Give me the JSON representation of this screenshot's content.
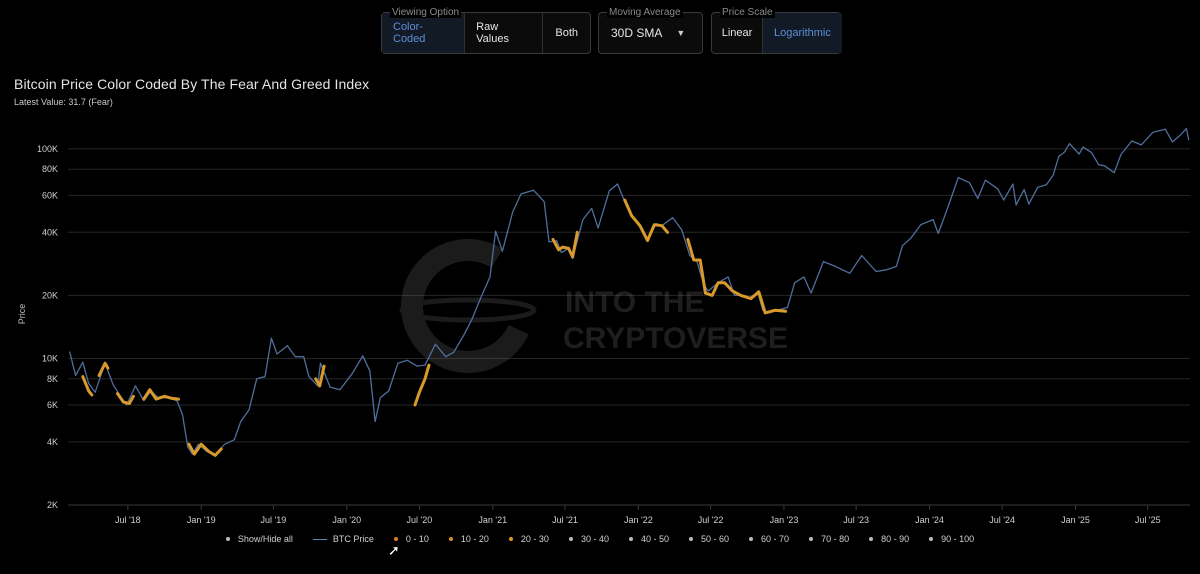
{
  "controls": {
    "viewing_option": {
      "label": "Viewing Option",
      "options": [
        "Color-Coded",
        "Raw Values",
        "Both"
      ],
      "selected": "Color-Coded"
    },
    "moving_average": {
      "label": "Moving Average",
      "value": "30D SMA"
    },
    "price_scale": {
      "label": "Price Scale",
      "options": [
        "Linear",
        "Logarithmic"
      ],
      "selected": "Logarithmic"
    }
  },
  "chart_data": {
    "type": "line",
    "title": "Bitcoin Price Color Coded By The Fear And Greed Index",
    "subtitle": "Latest Value: 31.7 (Fear)",
    "ylabel": "Price",
    "xlabel": "",
    "yscale": "log",
    "ylim": [
      2000,
      130000
    ],
    "xlim": [
      "2018-02-01",
      "2025-10-15"
    ],
    "y_ticks": [
      {
        "value": 2000,
        "label": "2K"
      },
      {
        "value": 4000,
        "label": "4K"
      },
      {
        "value": 6000,
        "label": "6K"
      },
      {
        "value": 8000,
        "label": "8K"
      },
      {
        "value": 10000,
        "label": "10K"
      },
      {
        "value": 20000,
        "label": "20K"
      },
      {
        "value": 40000,
        "label": "40K"
      },
      {
        "value": 60000,
        "label": "60K"
      },
      {
        "value": 80000,
        "label": "80K"
      },
      {
        "value": 100000,
        "label": "100K"
      }
    ],
    "x_ticks": [
      {
        "date": "2018-07-01",
        "label": "Jul '18"
      },
      {
        "date": "2019-01-01",
        "label": "Jan '19"
      },
      {
        "date": "2019-07-01",
        "label": "Jul '19"
      },
      {
        "date": "2020-01-01",
        "label": "Jan '20"
      },
      {
        "date": "2020-07-01",
        "label": "Jul '20"
      },
      {
        "date": "2021-01-01",
        "label": "Jan '21"
      },
      {
        "date": "2021-07-01",
        "label": "Jul '21"
      },
      {
        "date": "2022-01-01",
        "label": "Jan '22"
      },
      {
        "date": "2022-07-01",
        "label": "Jul '22"
      },
      {
        "date": "2023-01-01",
        "label": "Jan '23"
      },
      {
        "date": "2023-07-01",
        "label": "Jul '23"
      },
      {
        "date": "2024-01-01",
        "label": "Jan '24"
      },
      {
        "date": "2024-07-01",
        "label": "Jul '24"
      },
      {
        "date": "2025-01-01",
        "label": "Jan '25"
      },
      {
        "date": "2025-07-01",
        "label": "Jul '25"
      }
    ],
    "grid": true,
    "legend_position": "bottom",
    "series": [
      {
        "name": "BTC Price",
        "color": "#4f6f9c",
        "x": [
          "2018-02-05",
          "2018-02-20",
          "2018-03-10",
          "2018-03-25",
          "2018-04-10",
          "2018-05-05",
          "2018-05-25",
          "2018-06-15",
          "2018-06-28",
          "2018-07-20",
          "2018-08-10",
          "2018-08-28",
          "2018-09-15",
          "2018-10-10",
          "2018-11-01",
          "2018-11-15",
          "2018-11-28",
          "2018-12-10",
          "2018-12-25",
          "2019-01-15",
          "2019-02-05",
          "2019-03-01",
          "2019-03-25",
          "2019-04-10",
          "2019-05-01",
          "2019-05-20",
          "2019-06-10",
          "2019-06-26",
          "2019-07-10",
          "2019-08-05",
          "2019-08-25",
          "2019-09-15",
          "2019-09-28",
          "2019-10-20",
          "2019-10-27",
          "2019-11-20",
          "2019-12-15",
          "2020-01-15",
          "2020-02-10",
          "2020-02-28",
          "2020-03-12",
          "2020-03-25",
          "2020-04-15",
          "2020-05-08",
          "2020-06-01",
          "2020-06-25",
          "2020-07-15",
          "2020-08-10",
          "2020-09-05",
          "2020-09-25",
          "2020-10-20",
          "2020-11-10",
          "2020-12-01",
          "2020-12-25",
          "2021-01-08",
          "2021-01-25",
          "2021-02-20",
          "2021-03-13",
          "2021-04-13",
          "2021-05-10",
          "2021-05-22",
          "2021-06-10",
          "2021-06-22",
          "2021-07-10",
          "2021-07-20",
          "2021-08-15",
          "2021-09-06",
          "2021-09-22",
          "2021-10-20",
          "2021-11-10",
          "2021-11-28",
          "2021-12-15",
          "2022-01-10",
          "2022-01-24",
          "2022-02-15",
          "2022-03-01",
          "2022-03-28",
          "2022-04-20",
          "2022-05-10",
          "2022-05-28",
          "2022-06-14",
          "2022-06-25",
          "2022-07-20",
          "2022-08-14",
          "2022-08-30",
          "2022-09-15",
          "2022-10-05",
          "2022-10-28",
          "2022-11-09",
          "2022-11-25",
          "2022-12-15",
          "2023-01-10",
          "2023-01-28",
          "2023-02-20",
          "2023-03-10",
          "2023-04-10",
          "2023-05-10",
          "2023-06-15",
          "2023-07-15",
          "2023-08-20",
          "2023-09-15",
          "2023-10-10",
          "2023-10-25",
          "2023-11-15",
          "2023-12-10",
          "2024-01-10",
          "2024-01-23",
          "2024-02-15",
          "2024-03-13",
          "2024-04-10",
          "2024-05-01",
          "2024-05-20",
          "2024-06-20",
          "2024-07-05",
          "2024-07-28",
          "2024-08-05",
          "2024-08-25",
          "2024-09-06",
          "2024-09-28",
          "2024-10-20",
          "2024-11-06",
          "2024-11-20",
          "2024-12-05",
          "2024-12-17",
          "2025-01-10",
          "2025-01-20",
          "2025-02-10",
          "2025-02-28",
          "2025-03-15",
          "2025-04-08",
          "2025-04-25",
          "2025-05-22",
          "2025-06-15",
          "2025-07-14",
          "2025-08-14",
          "2025-09-01",
          "2025-09-20",
          "2025-10-06",
          "2025-10-12"
        ],
        "y": [
          10800,
          8300,
          9600,
          7600,
          6900,
          9500,
          7500,
          6500,
          6000,
          7400,
          6300,
          7000,
          6500,
          6500,
          6300,
          5400,
          3800,
          3500,
          3900,
          3600,
          3500,
          3900,
          4100,
          5000,
          5700,
          8000,
          8200,
          12500,
          10500,
          11500,
          10200,
          10200,
          8200,
          7400,
          9500,
          7300,
          7100,
          8500,
          10300,
          8700,
          5000,
          6500,
          7000,
          9500,
          9800,
          9200,
          9300,
          11700,
          10200,
          10700,
          12900,
          15400,
          19300,
          24500,
          40500,
          32500,
          50000,
          61000,
          63500,
          56000,
          36000,
          36500,
          32000,
          33500,
          30000,
          46000,
          52000,
          42000,
          63000,
          68000,
          56000,
          48000,
          41000,
          36500,
          44000,
          43000,
          47000,
          41000,
          31000,
          29000,
          22500,
          21000,
          23000,
          24500,
          20000,
          20000,
          19500,
          20500,
          17000,
          16500,
          17000,
          17500,
          23000,
          24500,
          20500,
          29000,
          27500,
          25500,
          31000,
          26000,
          26500,
          27500,
          34500,
          37500,
          43500,
          46000,
          39500,
          52000,
          73000,
          69000,
          58000,
          71000,
          64500,
          57000,
          68000,
          54000,
          64000,
          54500,
          65500,
          67500,
          75000,
          92000,
          97000,
          106000,
          94500,
          102000,
          96000,
          84000,
          83000,
          77000,
          94000,
          109000,
          104500,
          120000,
          124000,
          108000,
          116000,
          125000,
          110000
        ]
      }
    ],
    "fear_segments": [
      {
        "range": "20 - 30",
        "x": [
          "2018-03-10",
          "2018-03-25",
          "2018-04-02"
        ],
        "y": [
          8200,
          7000,
          6700
        ]
      },
      {
        "range": "20 - 30",
        "x": [
          "2018-04-20",
          "2018-05-05",
          "2018-05-12"
        ],
        "y": [
          8300,
          9500,
          9000
        ]
      },
      {
        "range": "20 - 30",
        "x": [
          "2018-06-05",
          "2018-06-20",
          "2018-07-05",
          "2018-07-15"
        ],
        "y": [
          6800,
          6200,
          6100,
          6600
        ]
      },
      {
        "range": "20 - 30",
        "x": [
          "2018-08-10",
          "2018-08-25",
          "2018-09-10",
          "2018-10-01",
          "2018-10-20",
          "2018-11-05"
        ],
        "y": [
          6400,
          7100,
          6400,
          6600,
          6450,
          6400
        ]
      },
      {
        "range": "20 - 30",
        "x": [
          "2018-12-01",
          "2018-12-15",
          "2019-01-01",
          "2019-01-20",
          "2019-02-05",
          "2019-02-20"
        ],
        "y": [
          3900,
          3500,
          3900,
          3600,
          3450,
          3700
        ]
      },
      {
        "range": "20 - 30",
        "x": [
          "2019-10-15",
          "2019-10-25",
          "2019-11-05"
        ],
        "y": [
          8000,
          7400,
          9200
        ]
      },
      {
        "range": "20 - 30",
        "x": [
          "2020-06-20",
          "2020-07-01",
          "2020-07-15",
          "2020-07-25"
        ],
        "y": [
          6000,
          6900,
          8000,
          9300
        ]
      },
      {
        "range": "20 - 30",
        "x": [
          "2021-06-01",
          "2021-06-15",
          "2021-06-25",
          "2021-07-10",
          "2021-07-20",
          "2021-08-01"
        ],
        "y": [
          37000,
          33000,
          34000,
          33500,
          30500,
          40000
        ]
      },
      {
        "range": "20 - 30",
        "x": [
          "2021-11-28",
          "2021-12-15",
          "2022-01-05",
          "2022-01-24",
          "2022-02-10",
          "2022-03-01",
          "2022-03-15"
        ],
        "y": [
          57000,
          48000,
          43000,
          36500,
          43500,
          43000,
          40000
        ]
      },
      {
        "range": "20 - 30",
        "x": [
          "2022-05-05",
          "2022-05-20",
          "2022-06-05",
          "2022-06-18",
          "2022-07-05",
          "2022-07-20",
          "2022-08-05",
          "2022-08-25",
          "2022-09-15",
          "2022-10-10",
          "2022-10-30",
          "2022-11-15",
          "2022-12-10",
          "2023-01-05"
        ],
        "y": [
          37000,
          29500,
          29500,
          20500,
          20000,
          23000,
          23000,
          21000,
          20000,
          19300,
          20800,
          16500,
          17000,
          16800
        ]
      }
    ]
  },
  "watermark": {
    "line1": "INTO THE",
    "line2": "CRYPTOVERSE"
  },
  "legend": {
    "show_hide_all": "Show/Hide all",
    "series_label": "BTC Price",
    "ranges": [
      {
        "label": "0 - 10",
        "color": "#e07a1f"
      },
      {
        "label": "10 - 20",
        "color": "#d98c2a"
      },
      {
        "label": "20 - 30",
        "color": "#d99a2b"
      },
      {
        "label": "30 - 40",
        "color": "#bbbbbb"
      },
      {
        "label": "40 - 50",
        "color": "#bbbbbb"
      },
      {
        "label": "50 - 60",
        "color": "#bbbbbb"
      },
      {
        "label": "60 - 70",
        "color": "#bbbbbb"
      },
      {
        "label": "70 - 80",
        "color": "#bbbbbb"
      },
      {
        "label": "80 - 90",
        "color": "#bbbbbb"
      },
      {
        "label": "90 - 100",
        "color": "#bbbbbb"
      }
    ]
  }
}
